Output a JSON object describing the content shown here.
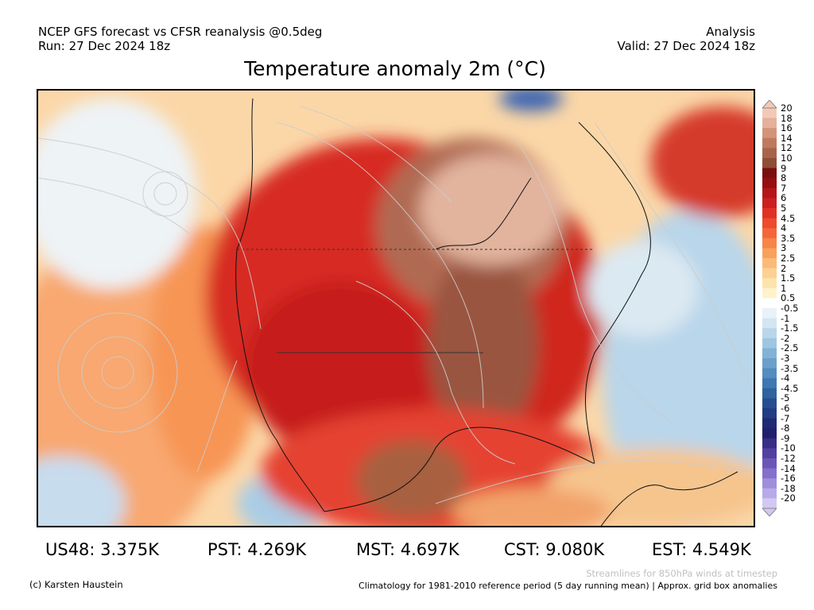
{
  "header": {
    "source_line": "NCEP GFS forecast vs CFSR reanalysis @0.5deg",
    "run_line": "Run: 27 Dec 2024 18z",
    "analysis_label": "Analysis",
    "valid_line": "Valid: 27 Dec 2024 18z"
  },
  "title": "Temperature anomaly 2m (°C)",
  "colorbar": {
    "labels": [
      "20",
      "18",
      "16",
      "14",
      "12",
      "10",
      "9",
      "8",
      "7",
      "6",
      "5",
      "4.5",
      "4",
      "3.5",
      "3",
      "2.5",
      "2",
      "1.5",
      "1",
      "0.5",
      "-0.5",
      "-1",
      "-1.5",
      "-2",
      "-2.5",
      "-3",
      "-3.5",
      "-4",
      "-4.5",
      "-5",
      "-6",
      "-7",
      "-8",
      "-9",
      "-10",
      "-12",
      "-14",
      "-16",
      "-18",
      "-20"
    ],
    "colors": [
      "#f3c9b6",
      "#e6b09a",
      "#d39479",
      "#bf7a5e",
      "#a8644a",
      "#8e4e37",
      "#7a0f0f",
      "#950f10",
      "#b5151a",
      "#cc1f1f",
      "#e03126",
      "#ee4a2c",
      "#f4663a",
      "#f78548",
      "#f9a05c",
      "#fbba78",
      "#fcd193",
      "#fde3ad",
      "#fff2cc",
      "#ffffff",
      "#e9f2f8",
      "#d3e6f2",
      "#b9d6ea",
      "#9ec6e1",
      "#82b3d7",
      "#6aa0cb",
      "#538cbe",
      "#3f77b0",
      "#2f62a0",
      "#254e90",
      "#213c82",
      "#1e2a74",
      "#22206a",
      "#382e86",
      "#5240a0",
      "#6b55b8",
      "#8470cc",
      "#9e8edc",
      "#b8aae8",
      "#d2c8f2"
    ]
  },
  "regional_stats": [
    {
      "label": "US48: 3.375K"
    },
    {
      "label": "PST: 4.269K"
    },
    {
      "label": "MST: 4.697K"
    },
    {
      "label": "CST: 9.080K"
    },
    {
      "label": "EST: 4.549K"
    }
  ],
  "footer": {
    "credit": "(c) Karsten Haustein",
    "streamlines_note": "Streamlines for 850hPa winds at timestep",
    "climatology_note": "Climatology for 1981-2010 reference period (5 day running mean) | Approx. grid box anomalies"
  }
}
